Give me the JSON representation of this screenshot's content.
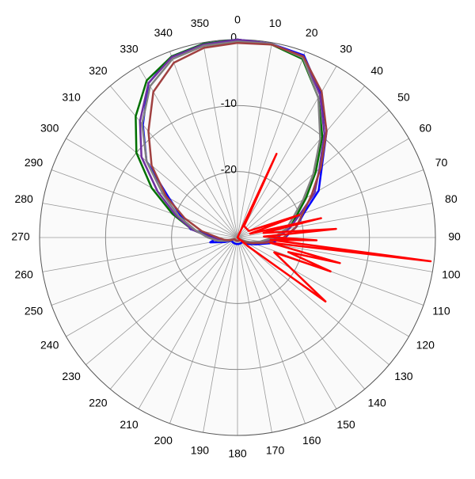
{
  "chart_data": {
    "type": "polar",
    "rlim": [
      -30,
      0
    ],
    "rticks": [
      -20,
      -10,
      0
    ],
    "thetaticks": [
      0,
      10,
      20,
      30,
      40,
      50,
      60,
      70,
      80,
      90,
      100,
      110,
      120,
      130,
      140,
      150,
      160,
      170,
      180,
      190,
      200,
      210,
      220,
      230,
      240,
      250,
      260,
      270,
      280,
      290,
      300,
      310,
      320,
      330,
      340,
      350
    ],
    "series": [
      {
        "color": "#0000ff",
        "theta": [
          0,
          10,
          20,
          30,
          40,
          50,
          60,
          70,
          80,
          90,
          100,
          110,
          120,
          130,
          140,
          150,
          160,
          170,
          180,
          190,
          200,
          210,
          220,
          230,
          240,
          250,
          260,
          270,
          280,
          290,
          300,
          310,
          320,
          330,
          340,
          350
        ],
        "values": [
          0,
          -0.2,
          -0.6,
          -4.8,
          -9,
          -13.3,
          -15.8,
          -19.3,
          -21,
          -22.8,
          -25,
          -27,
          -28,
          -29,
          -29,
          -29,
          -29,
          -29,
          -29,
          -29,
          -29,
          -29,
          -29,
          -29,
          -29,
          -28,
          -25.8,
          -27,
          -22.8,
          -21,
          -18,
          -12,
          -7.7,
          -3,
          -0.8,
          -0.2
        ]
      },
      {
        "color": "#007000",
        "theta": [
          0,
          10,
          20,
          30,
          40,
          50,
          60,
          70,
          80,
          90,
          100,
          110,
          120,
          130,
          140,
          150,
          160,
          170,
          180,
          190,
          200,
          210,
          220,
          230,
          240,
          250,
          260,
          270,
          280,
          290,
          300,
          310,
          320,
          330,
          340,
          350
        ],
        "values": [
          0,
          -0.3,
          -1.2,
          -5.5,
          -10,
          -14.5,
          -18,
          -20.5,
          -22,
          -24,
          -26,
          -27.5,
          -28.5,
          -29.5,
          -29.5,
          -29.5,
          -29.5,
          -29.5,
          -29.5,
          -29.5,
          -29.5,
          -29.5,
          -29.5,
          -29.5,
          -29.5,
          -28.5,
          -27,
          -26,
          -23,
          -19.5,
          -15,
          -10,
          -6,
          -2.5,
          -0.8,
          -0.2
        ]
      },
      {
        "color": "#7030a0",
        "theta": [
          0,
          10,
          20,
          30,
          40,
          50,
          60,
          70,
          80,
          90,
          100,
          110,
          120,
          130,
          140,
          150,
          160,
          170,
          180,
          190,
          200,
          210,
          220,
          230,
          240,
          250,
          260,
          270,
          280,
          290,
          300,
          310,
          320,
          330,
          340,
          350
        ],
        "values": [
          0,
          -0.2,
          -0.8,
          -5,
          -9.5,
          -13.8,
          -16.5,
          -20,
          -22,
          -24,
          -26,
          -27.5,
          -28.5,
          -29.5,
          -29.5,
          -29.5,
          -29.5,
          -29.5,
          -29.5,
          -29.5,
          -29.5,
          -29.5,
          -29.5,
          -29.5,
          -29.5,
          -28.5,
          -27.5,
          -26,
          -23,
          -20,
          -16,
          -11,
          -7,
          -3,
          -0.9,
          -0.3
        ]
      },
      {
        "color": "#808080",
        "theta": [
          0,
          10,
          20,
          30,
          40,
          50,
          60,
          70,
          80,
          90,
          100,
          110,
          120,
          130,
          140,
          150,
          160,
          170,
          180,
          190,
          200,
          210,
          220,
          230,
          240,
          250,
          260,
          270,
          280,
          290,
          300,
          310,
          320,
          330,
          340,
          350
        ],
        "values": [
          -0.3,
          -0.2,
          -1,
          -5.5,
          -10.5,
          -15,
          -18.5,
          -21,
          -22.5,
          -24.5,
          -26.5,
          -28,
          -29,
          -29.5,
          -29.5,
          -29.5,
          -29.5,
          -29.5,
          -29.5,
          -29.5,
          -29.5,
          -29.5,
          -29.5,
          -29.5,
          -29.5,
          -28.5,
          -27,
          -25.5,
          -23.5,
          -20.5,
          -17,
          -12,
          -7.5,
          -3.5,
          -1.2,
          -0.5
        ]
      },
      {
        "color": "#a04040",
        "theta": [
          0,
          10,
          20,
          30,
          40,
          50,
          60,
          70,
          80,
          90,
          100,
          110,
          120,
          130,
          140,
          150,
          160,
          170,
          180,
          190,
          200,
          210,
          220,
          230,
          240,
          250,
          260,
          270,
          280,
          290,
          300,
          310,
          320,
          330,
          340,
          350
        ],
        "values": [
          -0.5,
          -0.3,
          -0.8,
          -4.5,
          -9,
          -13.5,
          -17,
          -19.5,
          -21,
          -23,
          -25.5,
          -27.5,
          -28.5,
          -29.5,
          -29.5,
          -29.5,
          -29.5,
          -29.5,
          -29.5,
          -29.5,
          -29.5,
          -29.5,
          -29.5,
          -29.5,
          -29.5,
          -28.8,
          -28,
          -27,
          -24.5,
          -21.5,
          -17.5,
          -13,
          -9,
          -4.5,
          -1.8,
          -0.8
        ]
      },
      {
        "color": "#ff0000",
        "theta": [
          0,
          15,
          25,
          30,
          60,
          70,
          73,
          77,
          80,
          85,
          88,
          92,
          94,
          97,
          99,
          104,
          106,
          110,
          112,
          126,
          130,
          140,
          200
        ],
        "values": [
          -30,
          -30,
          -16,
          -28,
          -28,
          -20,
          -28,
          -17,
          -26,
          -15,
          -26,
          -18,
          -25,
          -0.5,
          -25,
          -14,
          -22,
          -15,
          -24,
          -13.5,
          -28,
          -30,
          -30
        ]
      }
    ]
  }
}
